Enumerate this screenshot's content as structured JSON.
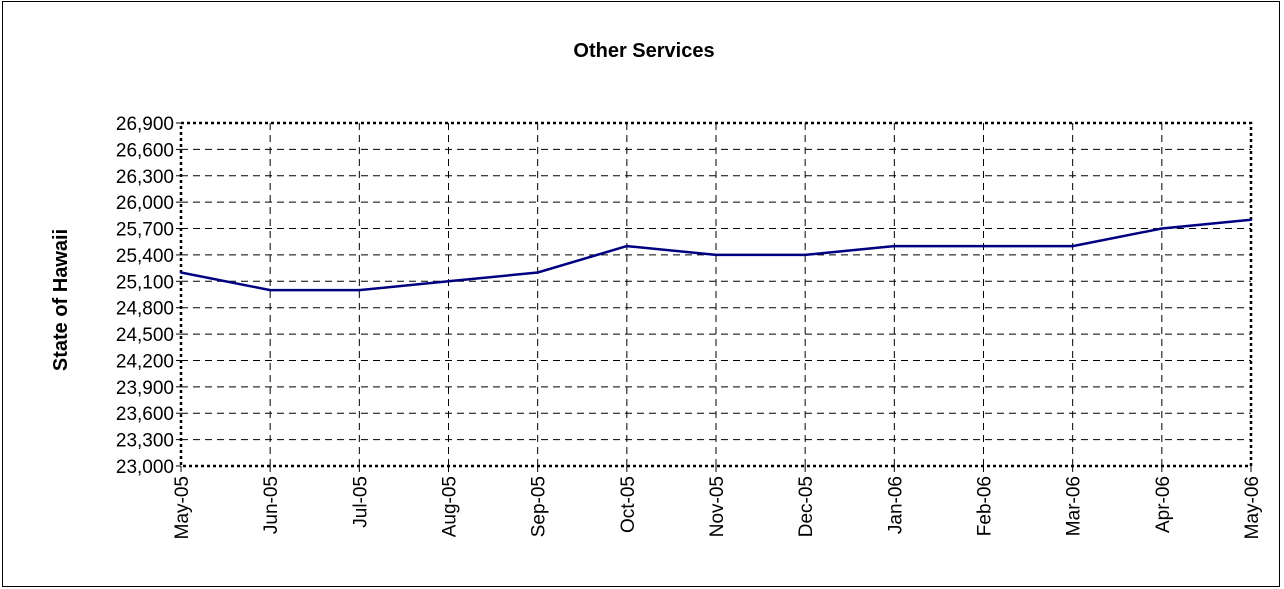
{
  "chart_data": {
    "type": "line",
    "title": "Other Services",
    "ylabel": "State of Hawaii",
    "xlabel": "",
    "categories": [
      "May-05",
      "Jun-05",
      "Jul-05",
      "Aug-05",
      "Sep-05",
      "Oct-05",
      "Nov-05",
      "Dec-05",
      "Jan-06",
      "Feb-06",
      "Mar-06",
      "Apr-06",
      "May-06"
    ],
    "series": [
      {
        "values": [
          25200,
          25000,
          25000,
          25100,
          25200,
          25500,
          25400,
          25400,
          25500,
          25500,
          25500,
          25700,
          25800
        ]
      }
    ],
    "yticks": [
      "23,000",
      "23,300",
      "23,600",
      "23,900",
      "24,200",
      "24,500",
      "24,800",
      "25,100",
      "25,400",
      "25,700",
      "26,000",
      "26,300",
      "26,600",
      "26,900"
    ],
    "ytick_values": [
      23000,
      23300,
      23600,
      23900,
      24200,
      24500,
      24800,
      25100,
      25400,
      25700,
      26000,
      26300,
      26600,
      26900
    ],
    "ylim": [
      23000,
      26900
    ],
    "grid": true,
    "legend": "none",
    "colors": {
      "line": "#000080",
      "grid": "#000000",
      "text": "#000000"
    }
  }
}
